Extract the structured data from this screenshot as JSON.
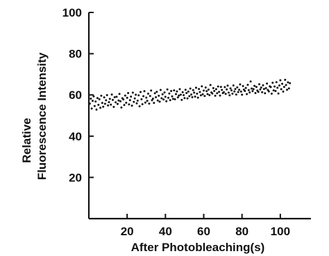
{
  "chart_data": {
    "type": "scatter",
    "title": "",
    "xlabel": "After Photobleaching(s)",
    "ylabel_lines": [
      "Relative",
      "Fluorescence Intensity"
    ],
    "xlim": [
      0,
      116
    ],
    "ylim": [
      0,
      100
    ],
    "x_ticks": [
      20,
      40,
      60,
      80,
      100
    ],
    "y_ticks": [
      20,
      40,
      60,
      80,
      100
    ],
    "grid": false,
    "series": [
      {
        "x": [
          0.5,
          1,
          1.5,
          2,
          2.5,
          3,
          3.5,
          4,
          4.5,
          5,
          5.5,
          6,
          6.5,
          7,
          7.5,
          8,
          8.5,
          9,
          9.5,
          10,
          10.5,
          11,
          11.5,
          12,
          12.5,
          13,
          13.5,
          14,
          14.5,
          15,
          15.5,
          16,
          16.5,
          17,
          17.5,
          18,
          18.5,
          19,
          19.5,
          20,
          20.5,
          21,
          21.5,
          22,
          22.5,
          23,
          23.5,
          24,
          24.5,
          25,
          25.5,
          26,
          26.5,
          27,
          27.5,
          28,
          28.5,
          29,
          29.5,
          30,
          30.5,
          31,
          31.5,
          32,
          32.5,
          33,
          33.5,
          34,
          34.5,
          35,
          35.5,
          36,
          36.5,
          37,
          37.5,
          38,
          38.5,
          39,
          39.5,
          40,
          40.5,
          41,
          41.5,
          42,
          42.5,
          43,
          43.5,
          44,
          44.5,
          45,
          45.5,
          46,
          46.5,
          47,
          47.5,
          48,
          48.5,
          49,
          49.5,
          50,
          50.5,
          51,
          51.5,
          52,
          52.5,
          53,
          53.5,
          54,
          54.5,
          55,
          55.5,
          56,
          56.5,
          57,
          57.5,
          58,
          58.5,
          59,
          59.5,
          60,
          60.5,
          61,
          61.5,
          62,
          62.5,
          63,
          63.5,
          64,
          64.5,
          65,
          65.5,
          66,
          66.5,
          67,
          67.5,
          68,
          68.5,
          69,
          69.5,
          70,
          70.5,
          71,
          71.5,
          72,
          72.5,
          73,
          73.5,
          74,
          74.5,
          75,
          75.5,
          76,
          76.5,
          77,
          77.5,
          78,
          78.5,
          79,
          79.5,
          80,
          80.5,
          81,
          81.5,
          82,
          82.5,
          83,
          83.5,
          84,
          84.5,
          85,
          85.5,
          86,
          86.5,
          87,
          87.5,
          88,
          88.5,
          89,
          89.5,
          90,
          90.5,
          91,
          91.5,
          92,
          92.5,
          93,
          93.5,
          94,
          94.5,
          95,
          95.5,
          96,
          96.5,
          97,
          97.5,
          98,
          98.5,
          99,
          99.5,
          100,
          100.5,
          101,
          101.5,
          102,
          102.5,
          103,
          103.5,
          104,
          104.5,
          105
        ],
        "y": [
          55.8,
          58.2,
          53.4,
          57.1,
          59.3,
          54.6,
          56.8,
          52.9,
          58.5,
          55.2,
          57.9,
          53.8,
          59.6,
          56.1,
          54.3,
          58.8,
          55.7,
          57.4,
          59.9,
          54.9,
          56.5,
          58.1,
          55.3,
          60.2,
          57.6,
          54.2,
          58.9,
          56.4,
          59.1,
          55.6,
          57.3,
          60.5,
          56.9,
          53.9,
          58.4,
          57.8,
          55.1,
          59.7,
          56.2,
          58.6,
          60.9,
          55.4,
          57.5,
          59.2,
          54.8,
          61.1,
          56.6,
          58.3,
          60.1,
          55.9,
          57.2,
          59.8,
          54.5,
          61.4,
          57.9,
          55.5,
          59.4,
          61.8,
          56.3,
          58.7,
          57.1,
          60.6,
          55.8,
          59.5,
          62.1,
          57.4,
          58.2,
          56.1,
          60.8,
          58.9,
          61.5,
          57.3,
          59.6,
          56.7,
          62.4,
          58.4,
          60.3,
          57.8,
          61.2,
          59.1,
          56.9,
          62.7,
          58.6,
          60.7,
          57.5,
          61.9,
          59.3,
          58.1,
          62.2,
          57.9,
          60.4,
          61.7,
          58.8,
          59.7,
          62.8,
          60.1,
          57.6,
          61.3,
          59.9,
          58.5,
          62.5,
          60.9,
          58.3,
          61.6,
          59.4,
          63.1,
          60.2,
          58.9,
          62.3,
          61.1,
          59.2,
          63.5,
          60.6,
          58.7,
          62.9,
          61.4,
          59.8,
          64.2,
          60.3,
          62.1,
          59.5,
          63.6,
          61.8,
          60.4,
          62.6,
          59.9,
          64.8,
          61.2,
          60.7,
          63.3,
          61.9,
          59.6,
          62.8,
          60.8,
          64.1,
          61.5,
          59.7,
          63.9,
          62.4,
          60.9,
          61.3,
          63.8,
          60.5,
          62.7,
          64.5,
          61.1,
          59.8,
          63.2,
          62.2,
          60.6,
          64.6,
          61.7,
          62.9,
          60.2,
          63.7,
          61.4,
          62.5,
          65.1,
          61.6,
          60.1,
          64.3,
          62.6,
          61.9,
          63.4,
          60.4,
          64.9,
          62.3,
          61.2,
          66.5,
          63.1,
          61.8,
          62.8,
          64.4,
          60.9,
          63.9,
          62.1,
          61.5,
          65.2,
          62.7,
          63.6,
          61.3,
          64.7,
          62.9,
          60.8,
          63.3,
          65.5,
          62.4,
          61.7,
          64.2,
          63.8,
          60.6,
          65.9,
          62.2,
          64.1,
          61.9,
          66.2,
          63.5,
          60.7,
          64.6,
          67.1,
          62.8,
          65.4,
          61.6,
          63.9,
          67.3,
          64.8,
          62.5,
          66.1,
          63.2,
          65.7
        ]
      }
    ]
  }
}
